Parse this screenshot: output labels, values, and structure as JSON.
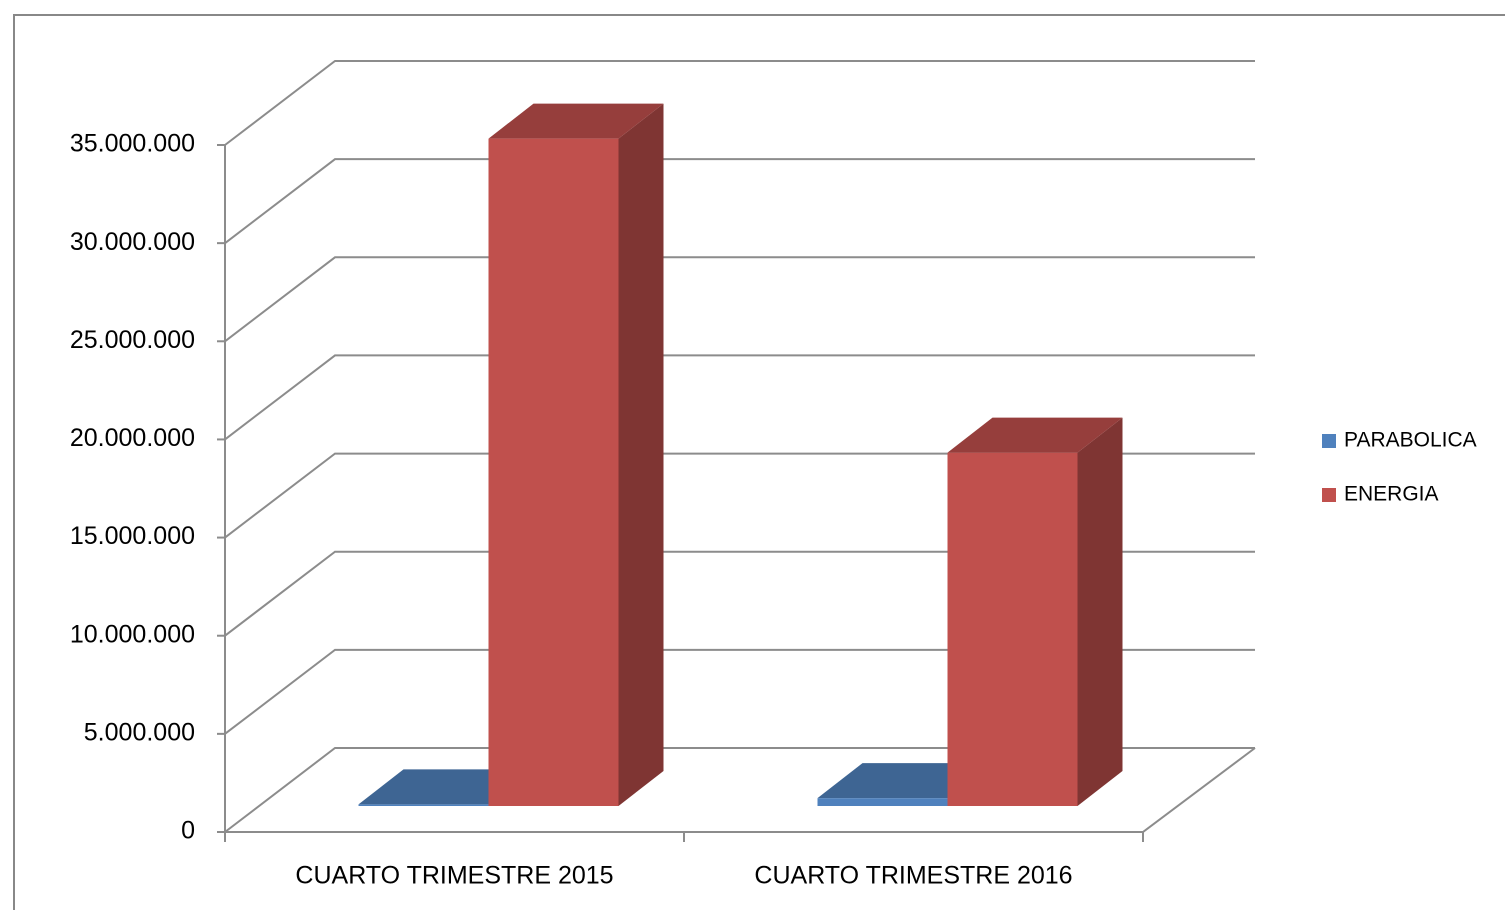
{
  "chart_data": {
    "type": "bar3d",
    "categories": [
      "CUARTO TRIMESTRE 2015",
      "CUARTO TRIMESTRE 2016"
    ],
    "series": [
      {
        "name": "PARABOLICA",
        "color": "#4f81bd",
        "values": [
          80000,
          400000
        ]
      },
      {
        "name": "ENERGIA",
        "color": "#c0504d",
        "values": [
          34000000,
          18000000
        ]
      }
    ],
    "ylim": [
      0,
      35000000
    ],
    "yticks": [
      {
        "value": 0,
        "label": "0"
      },
      {
        "value": 5000000,
        "label": "5.000.000"
      },
      {
        "value": 10000000,
        "label": "10.000.000"
      },
      {
        "value": 15000000,
        "label": "15.000.000"
      },
      {
        "value": 20000000,
        "label": "20.000.000"
      },
      {
        "value": 25000000,
        "label": "25.000.000"
      },
      {
        "value": 30000000,
        "label": "30.000.000"
      },
      {
        "value": 35000000,
        "label": "35.000.000"
      }
    ],
    "grid": true,
    "legend": "right"
  }
}
